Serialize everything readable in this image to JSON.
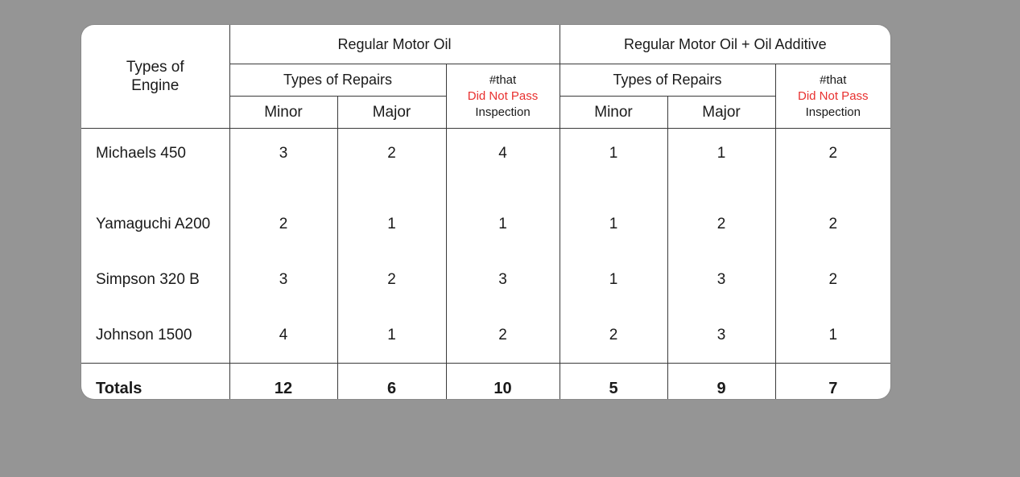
{
  "table": {
    "engine_header_line1": "Types of",
    "engine_header_line2": "Engine",
    "groups": [
      {
        "title": "Regular Motor Oil",
        "repairs_label": "Types of Repairs",
        "minor_label": "Minor",
        "major_label": "Major",
        "insp_line1": "#that",
        "insp_line2": "Did Not Pass",
        "insp_line3": "Inspection"
      },
      {
        "title": "Regular Motor Oil + Oil Additive",
        "repairs_label": "Types of Repairs",
        "minor_label": "Minor",
        "major_label": "Major",
        "insp_line1": "#that",
        "insp_line2": "Did Not Pass",
        "insp_line3": "Inspection"
      }
    ],
    "rows": [
      {
        "engine": "Michaels 450",
        "v": [
          "3",
          "2",
          "4",
          "1",
          "1",
          "2"
        ]
      },
      {
        "engine": "Yamaguchi A200",
        "v": [
          "2",
          "1",
          "1",
          "1",
          "2",
          "2"
        ]
      },
      {
        "engine": "Simpson 320 B",
        "v": [
          "3",
          "2",
          "3",
          "1",
          "3",
          "2"
        ]
      },
      {
        "engine": "Johnson 1500",
        "v": [
          "4",
          "1",
          "2",
          "2",
          "3",
          "1"
        ]
      }
    ],
    "totals": {
      "label": "Totals",
      "v": [
        "12",
        "6",
        "10",
        "5",
        "9",
        "7"
      ]
    },
    "highlight_color": "#e8302f"
  }
}
